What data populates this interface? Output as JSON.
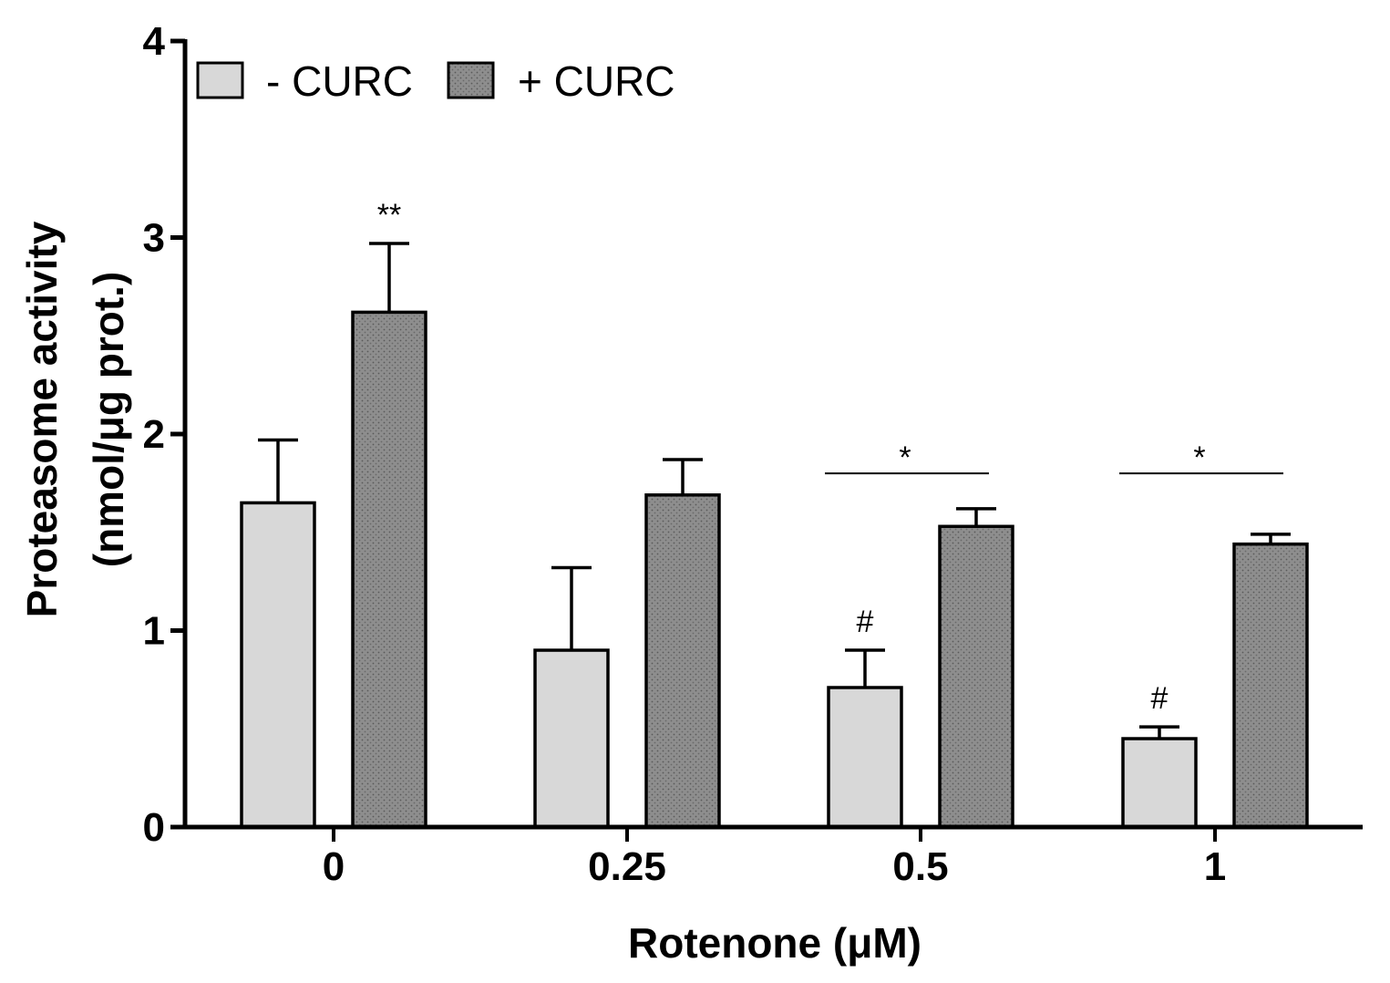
{
  "chart_data": {
    "type": "bar",
    "title": "",
    "xlabel": "Rotenone (μM)",
    "ylabel_line1": "Proteasome activity",
    "ylabel_line2": "(nmol/μg prot.)",
    "ylim": [
      0,
      4
    ],
    "yticks": [
      "0",
      "1",
      "2",
      "3",
      "4"
    ],
    "categories": [
      "0",
      "0.25",
      "0.5",
      "1"
    ],
    "series": [
      {
        "name": "- CURC",
        "values": [
          1.65,
          0.9,
          0.71,
          0.45
        ],
        "errors": [
          0.32,
          0.42,
          0.19,
          0.06
        ],
        "color": "#d8d8d8",
        "pattern": "solid"
      },
      {
        "name": "+ CURC",
        "values": [
          2.62,
          1.69,
          1.53,
          1.44
        ],
        "errors": [
          0.35,
          0.18,
          0.09,
          0.05
        ],
        "color": "#8c8c8c",
        "pattern": "dotted"
      }
    ],
    "legend_position": "top-left",
    "annotations": [
      {
        "text": "**",
        "category_index": 0,
        "series_index": 1
      },
      {
        "text": "#",
        "category_index": 2,
        "series_index": 0
      },
      {
        "text": "#",
        "category_index": 3,
        "series_index": 0
      }
    ],
    "brackets": [
      {
        "text": "*",
        "category_index": 2,
        "y": 1.8
      },
      {
        "text": "*",
        "category_index": 3,
        "y": 1.8
      }
    ]
  }
}
